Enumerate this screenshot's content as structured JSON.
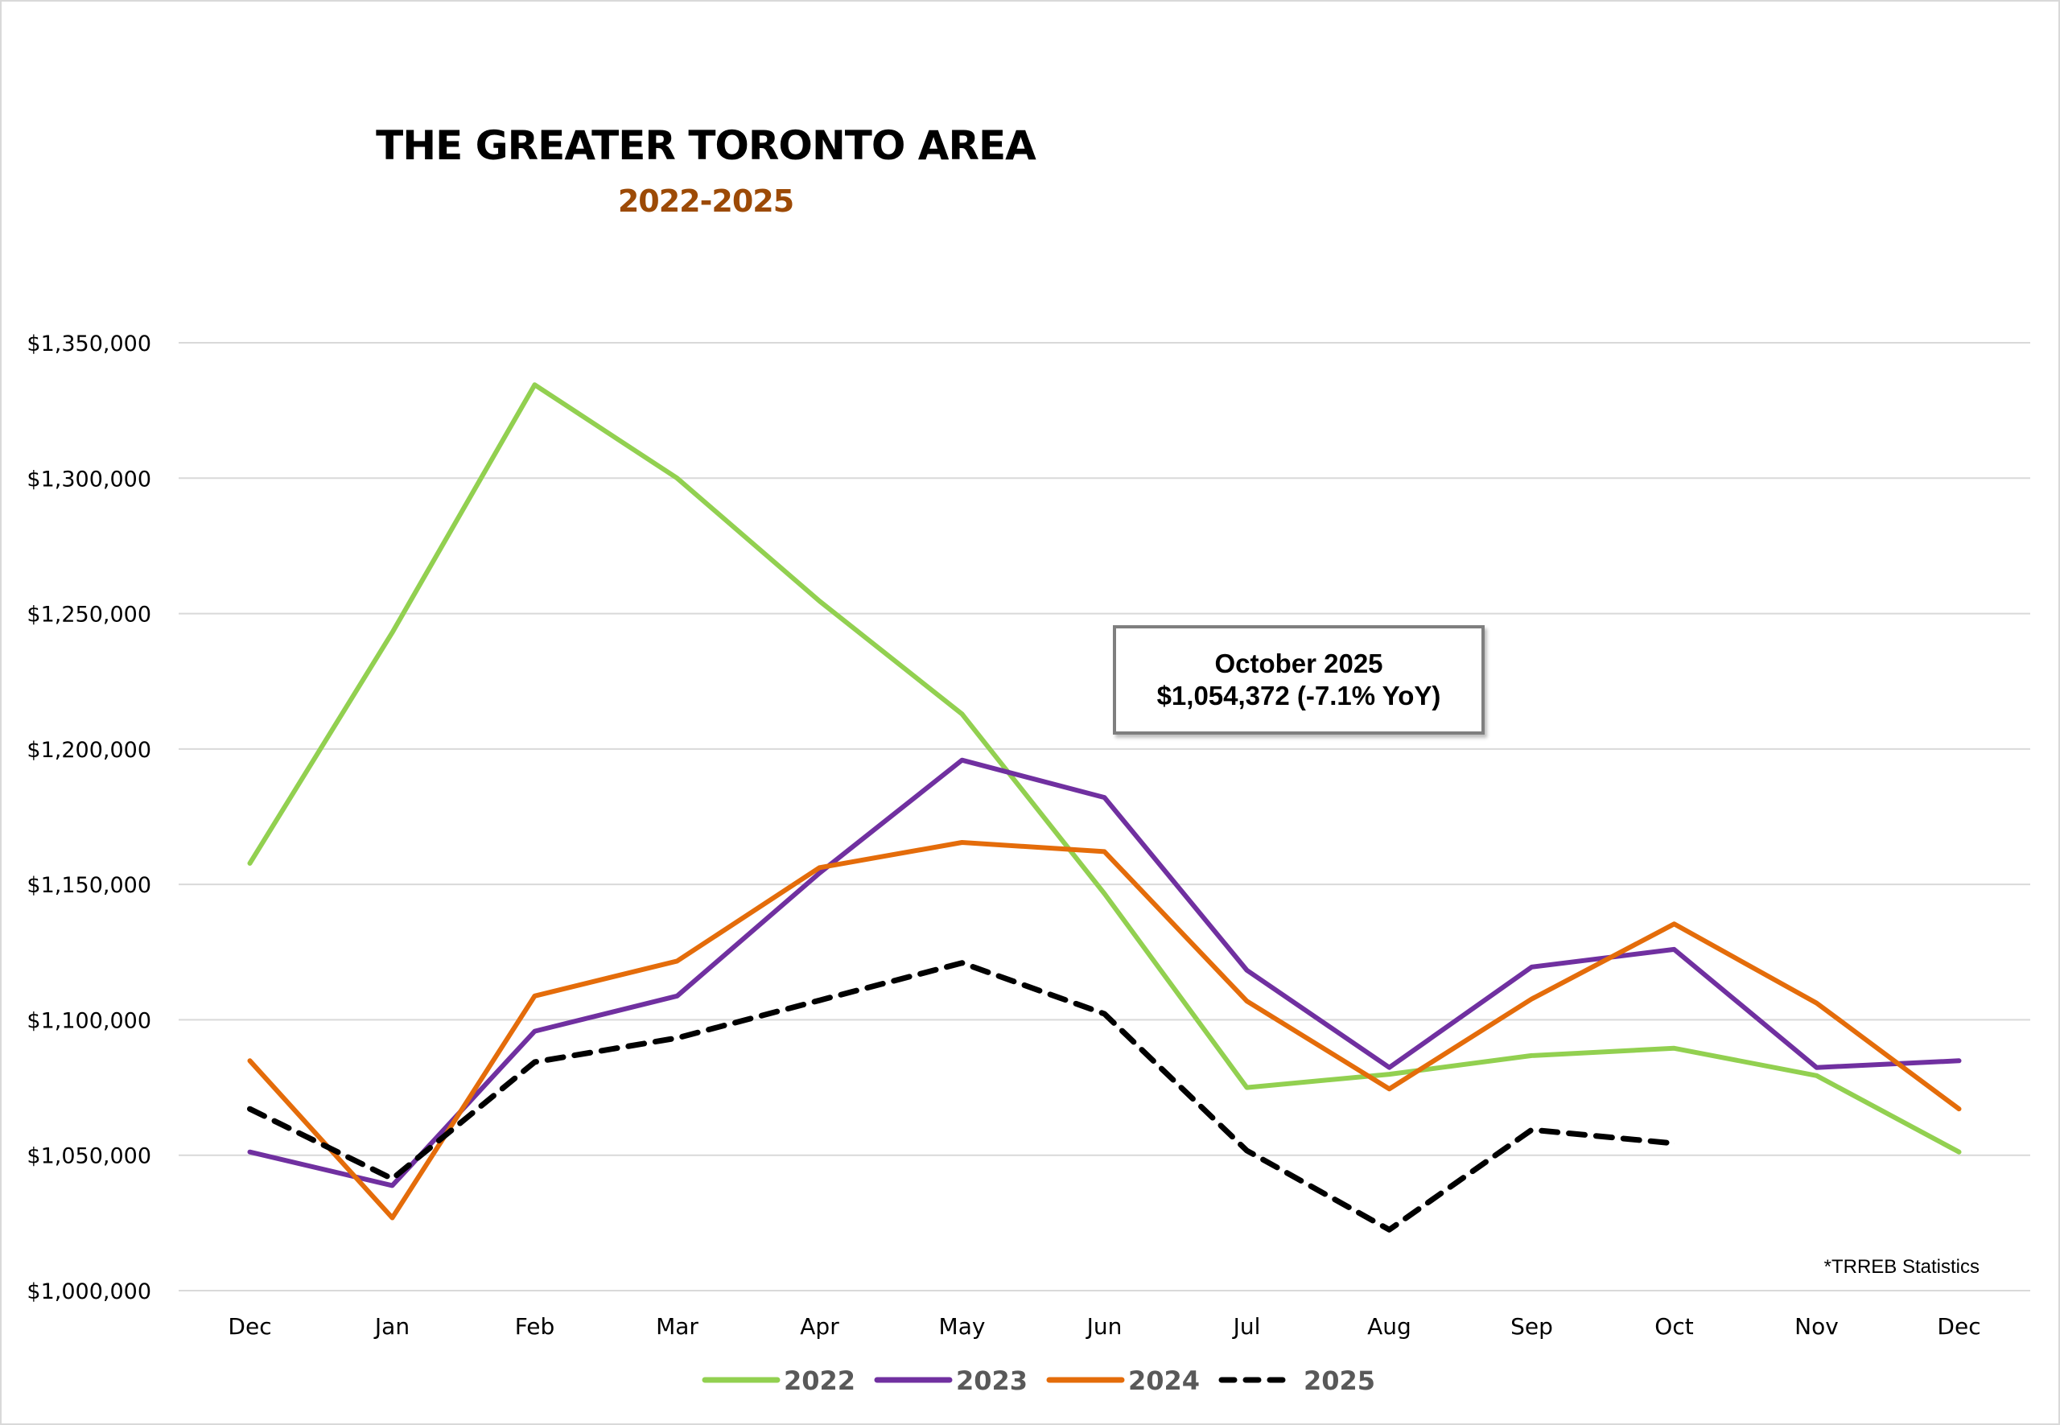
{
  "chart_data": {
    "type": "line",
    "title": "THE GREATER TORONTO AREA",
    "subtitle": "2022-2025",
    "xlabel": "",
    "ylabel": "",
    "categories": [
      "Dec",
      "Jan",
      "Feb",
      "Mar",
      "Apr",
      "May",
      "Jun",
      "Jul",
      "Aug",
      "Sep",
      "Oct",
      "Nov",
      "Dec"
    ],
    "ylim": [
      1000000,
      1350000
    ],
    "yticks": [
      1000000,
      1050000,
      1100000,
      1150000,
      1200000,
      1250000,
      1300000,
      1350000
    ],
    "ytick_labels": [
      "$1,000,000",
      "$1,050,000",
      "$1,100,000",
      "$1,150,000",
      "$1,200,000",
      "$1,250,000",
      "$1,300,000",
      "$1,350,000"
    ],
    "grid": true,
    "legend_position": "bottom",
    "series": [
      {
        "name": "2022",
        "color": "#92d050",
        "style": "solid",
        "values": [
          1157800,
          1243000,
          1334500,
          1300000,
          1254600,
          1212900,
          1146600,
          1075000,
          1079900,
          1086800,
          1089500,
          1079400,
          1051200
        ]
      },
      {
        "name": "2023",
        "color": "#7030a0",
        "style": "solid",
        "values": [
          1051200,
          1038800,
          1095800,
          1108800,
          1154200,
          1195900,
          1182100,
          1118300,
          1082400,
          1119500,
          1126000,
          1082400,
          1084900
        ]
      },
      {
        "name": "2024",
        "color": "#e46c0a",
        "style": "solid",
        "values": [
          1084900,
          1026900,
          1108800,
          1121700,
          1156200,
          1165500,
          1162100,
          1106900,
          1074500,
          1107700,
          1135400,
          1106200,
          1067100
        ]
      },
      {
        "name": "2025",
        "color": "#000000",
        "style": "dashed",
        "values": [
          1067100,
          1041300,
          1084400,
          1093300,
          1107200,
          1121000,
          1102200,
          1051700,
          1022500,
          1059400,
          1054372,
          null,
          null
        ]
      }
    ],
    "annotations": [
      {
        "line1": "October 2025",
        "line2": "$1,054,372 (-7.1% YoY)"
      }
    ],
    "source_note": "*TRREB Statistics"
  }
}
